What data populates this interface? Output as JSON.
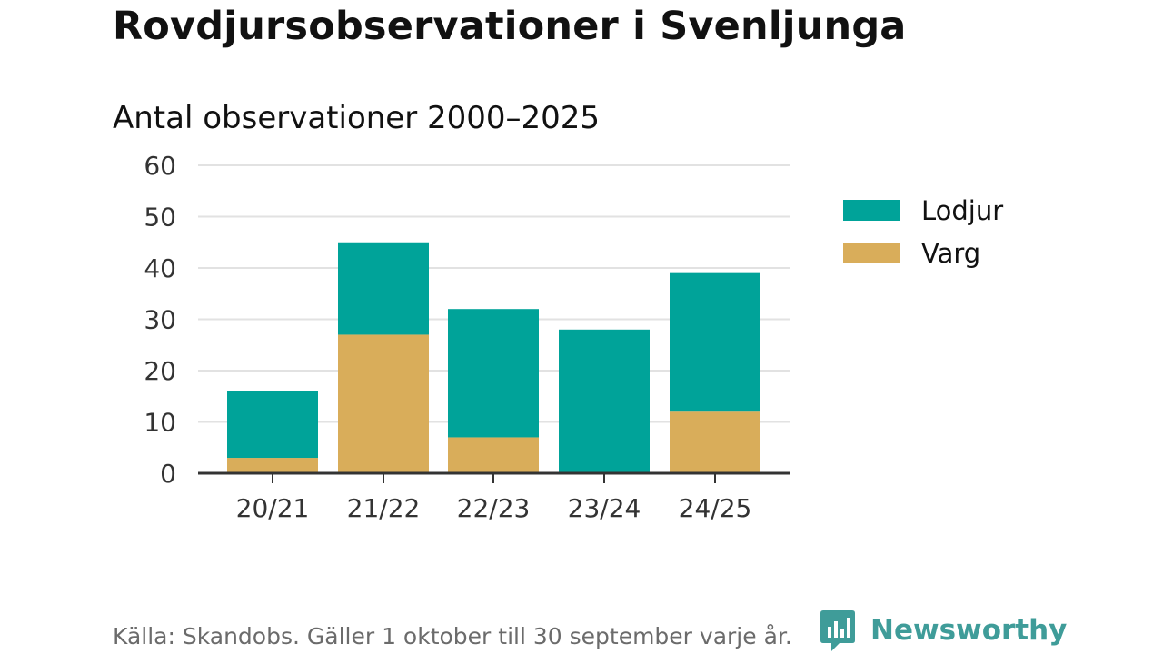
{
  "title": "Rovdjursobservationer i Svenljunga",
  "subtitle": "Antal observationer 2000–2025",
  "footer": {
    "source": "Källa: Skandobs. Gäller 1 oktober till 30 september varje år.",
    "brand": "Newsworthy"
  },
  "colors": {
    "lodjur": "#00a399",
    "varg": "#d9ad5a",
    "grid": "#e2e2e2",
    "axis": "#333333",
    "brand": "#3f9c99"
  },
  "chart_data": {
    "type": "bar",
    "stacked": true,
    "title": "Antal observationer 2000–2025",
    "xlabel": "",
    "ylabel": "",
    "categories": [
      "20/21",
      "21/22",
      "22/23",
      "23/24",
      "24/25"
    ],
    "series": [
      {
        "name": "Varg",
        "values": [
          3,
          27,
          7,
          0,
          12
        ]
      },
      {
        "name": "Lodjur",
        "values": [
          13,
          18,
          25,
          28,
          27
        ]
      }
    ],
    "ylim": [
      0,
      60
    ],
    "yticks": [
      0,
      10,
      20,
      30,
      40,
      50,
      60
    ],
    "grid": true,
    "legend_position": "right"
  },
  "legend": [
    {
      "label": "Lodjur",
      "color": "#00a399"
    },
    {
      "label": "Varg",
      "color": "#d9ad5a"
    }
  ]
}
